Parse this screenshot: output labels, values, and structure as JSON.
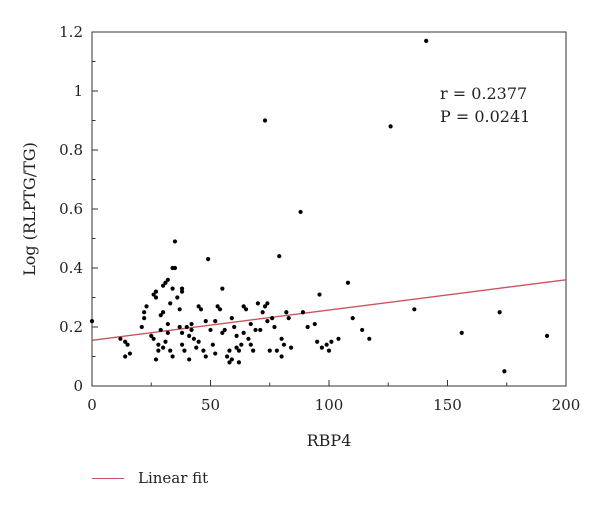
{
  "chart_data": {
    "type": "scatter",
    "xlabel": "RBP4",
    "ylabel": "Log (RLPTG/TG)",
    "xlim": [
      0,
      200
    ],
    "ylim": [
      0,
      1.2
    ],
    "xticks": [
      "0",
      "50",
      "100",
      "150",
      "200"
    ],
    "yticks": [
      "0",
      "0.2",
      "0.4",
      "0.6",
      "0.8",
      "1",
      "1.2"
    ],
    "grid": false,
    "legend_position": "bottom-left",
    "colors": {
      "points": "#000000",
      "fit_line": "#c9545e"
    },
    "annotation": {
      "r_label": "r = 0.2377",
      "p_label": "P = 0.0241"
    },
    "fit_line": {
      "name": "Linear fit",
      "x": [
        0,
        200
      ],
      "y": [
        0.155,
        0.36
      ]
    },
    "points": [
      [
        0,
        0.22
      ],
      [
        12,
        0.16
      ],
      [
        14,
        0.15
      ],
      [
        15,
        0.14
      ],
      [
        16,
        0.11
      ],
      [
        14,
        0.1
      ],
      [
        21,
        0.2
      ],
      [
        22,
        0.25
      ],
      [
        22,
        0.23
      ],
      [
        23,
        0.27
      ],
      [
        25,
        0.17
      ],
      [
        26,
        0.16
      ],
      [
        26,
        0.31
      ],
      [
        27,
        0.3
      ],
      [
        27,
        0.32
      ],
      [
        28,
        0.12
      ],
      [
        27,
        0.09
      ],
      [
        28,
        0.14
      ],
      [
        29,
        0.19
      ],
      [
        29,
        0.24
      ],
      [
        30,
        0.13
      ],
      [
        30,
        0.34
      ],
      [
        30,
        0.25
      ],
      [
        31,
        0.15
      ],
      [
        31,
        0.35
      ],
      [
        32,
        0.18
      ],
      [
        32,
        0.21
      ],
      [
        32,
        0.36
      ],
      [
        33,
        0.28
      ],
      [
        33,
        0.12
      ],
      [
        34,
        0.1
      ],
      [
        34,
        0.33
      ],
      [
        34,
        0.4
      ],
      [
        35,
        0.4
      ],
      [
        35,
        0.49
      ],
      [
        36,
        0.3
      ],
      [
        37,
        0.2
      ],
      [
        37,
        0.26
      ],
      [
        38,
        0.32
      ],
      [
        38,
        0.33
      ],
      [
        38,
        0.18
      ],
      [
        38,
        0.14
      ],
      [
        39,
        0.12
      ],
      [
        40,
        0.2
      ],
      [
        41,
        0.09
      ],
      [
        41,
        0.17
      ],
      [
        42,
        0.19
      ],
      [
        42,
        0.21
      ],
      [
        43,
        0.16
      ],
      [
        44,
        0.13
      ],
      [
        45,
        0.27
      ],
      [
        45,
        0.15
      ],
      [
        46,
        0.26
      ],
      [
        47,
        0.12
      ],
      [
        48,
        0.1
      ],
      [
        48,
        0.22
      ],
      [
        49,
        0.43
      ],
      [
        50,
        0.19
      ],
      [
        51,
        0.14
      ],
      [
        52,
        0.11
      ],
      [
        52,
        0.22
      ],
      [
        53,
        0.27
      ],
      [
        54,
        0.26
      ],
      [
        55,
        0.33
      ],
      [
        55,
        0.18
      ],
      [
        56,
        0.19
      ],
      [
        57,
        0.1
      ],
      [
        58,
        0.12
      ],
      [
        58,
        0.08
      ],
      [
        59,
        0.09
      ],
      [
        59,
        0.23
      ],
      [
        60,
        0.2
      ],
      [
        61,
        0.13
      ],
      [
        61,
        0.17
      ],
      [
        62,
        0.12
      ],
      [
        62,
        0.08
      ],
      [
        63,
        0.14
      ],
      [
        64,
        0.27
      ],
      [
        64,
        0.18
      ],
      [
        65,
        0.26
      ],
      [
        66,
        0.16
      ],
      [
        67,
        0.14
      ],
      [
        67,
        0.21
      ],
      [
        68,
        0.12
      ],
      [
        69,
        0.19
      ],
      [
        70,
        0.28
      ],
      [
        71,
        0.19
      ],
      [
        72,
        0.25
      ],
      [
        73,
        0.27
      ],
      [
        73,
        0.9
      ],
      [
        74,
        0.22
      ],
      [
        74,
        0.28
      ],
      [
        75,
        0.12
      ],
      [
        76,
        0.23
      ],
      [
        77,
        0.2
      ],
      [
        78,
        0.12
      ],
      [
        79,
        0.44
      ],
      [
        80,
        0.16
      ],
      [
        80,
        0.1
      ],
      [
        81,
        0.14
      ],
      [
        82,
        0.25
      ],
      [
        83,
        0.23
      ],
      [
        84,
        0.13
      ],
      [
        88,
        0.59
      ],
      [
        89,
        0.25
      ],
      [
        91,
        0.2
      ],
      [
        94,
        0.21
      ],
      [
        95,
        0.15
      ],
      [
        96,
        0.31
      ],
      [
        97,
        0.13
      ],
      [
        99,
        0.14
      ],
      [
        100,
        0.12
      ],
      [
        101,
        0.15
      ],
      [
        104,
        0.16
      ],
      [
        108,
        0.35
      ],
      [
        110,
        0.23
      ],
      [
        114,
        0.19
      ],
      [
        117,
        0.16
      ],
      [
        126,
        0.88
      ],
      [
        136,
        0.26
      ],
      [
        141,
        1.17
      ],
      [
        156,
        0.18
      ],
      [
        172,
        0.25
      ],
      [
        174,
        0.05
      ],
      [
        192,
        0.17
      ]
    ]
  }
}
